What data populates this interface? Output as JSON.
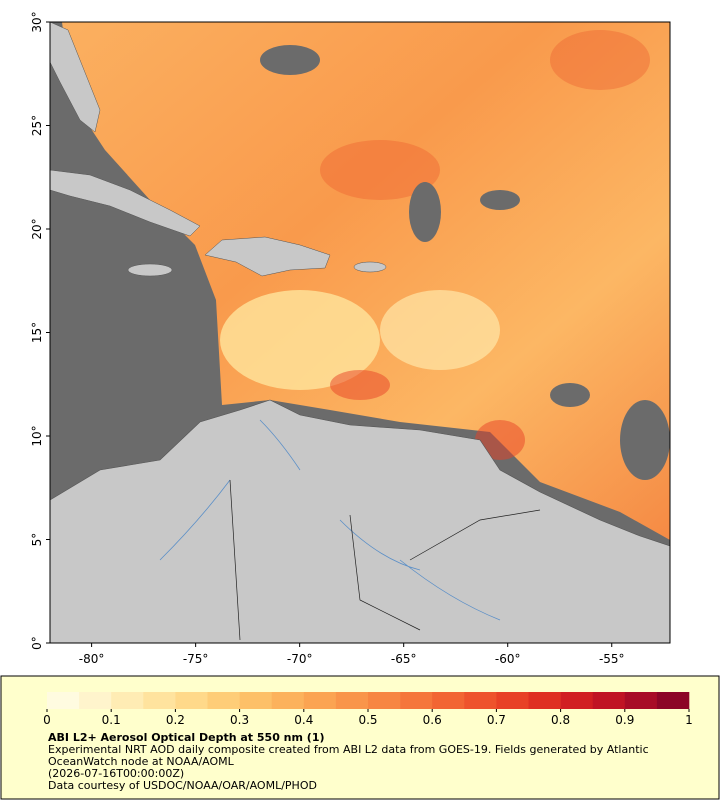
{
  "map": {
    "xlim": [
      -82,
      -52.2
    ],
    "ylim": [
      0,
      30
    ],
    "xticks": [
      {
        "value": -80,
        "label": "-80°"
      },
      {
        "value": -75,
        "label": "-75°"
      },
      {
        "value": -70,
        "label": "-70°"
      },
      {
        "value": -65,
        "label": "-65°"
      },
      {
        "value": -60,
        "label": "-60°"
      },
      {
        "value": -55,
        "label": "-55°"
      }
    ],
    "yticks": [
      {
        "value": 0,
        "label": "0°"
      },
      {
        "value": 5,
        "label": "5°"
      },
      {
        "value": 10,
        "label": "10°"
      },
      {
        "value": 15,
        "label": "15°"
      },
      {
        "value": 20,
        "label": "20°"
      },
      {
        "value": 25,
        "label": "25°"
      },
      {
        "value": 30,
        "label": "30°"
      }
    ]
  },
  "colorbar": {
    "lim": [
      0,
      1
    ],
    "ticks": [
      0,
      0.1,
      0.2,
      0.3,
      0.4,
      0.5,
      0.6,
      0.7,
      0.8,
      0.9,
      1
    ],
    "colors": [
      "#fffbe0",
      "#fff4cc",
      "#ffecb4",
      "#ffe39e",
      "#ffd98a",
      "#fecd78",
      "#fdc068",
      "#fcb25c",
      "#fba452",
      "#f9954a",
      "#f78642",
      "#f5763b",
      "#f26533",
      "#ee532c",
      "#e84126",
      "#df2f22",
      "#d11f22",
      "#c01424",
      "#a80c26",
      "#8c0526"
    ]
  },
  "caption": {
    "title": "ABI L2+ Aerosol Optical Depth at 550 nm (1)",
    "description": "Experimental NRT AOD daily composite created from ABI L2 data from GOES-19. Fields generated by Atlantic OceanWatch node at NOAA/AOML",
    "timestamp": "(2026-07-16T00:00:00Z)",
    "credit": "Data courtesy of USDOC/NOAA/OAR/AOML/PHOD"
  }
}
